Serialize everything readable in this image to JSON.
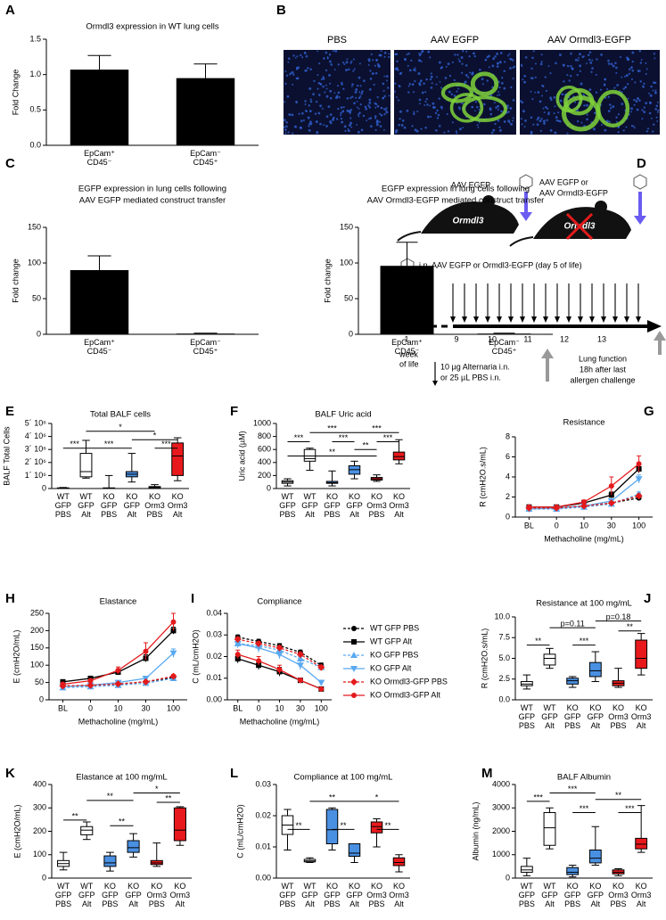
{
  "chart_data": [
    {
      "type": "bar",
      "label": "A",
      "title": "Ormdl3 expression in WT lung cells",
      "ylabel": "Fold Change",
      "categories": [
        "EpCam⁺ CD45⁻",
        "EpCam⁻ CD45⁺"
      ],
      "values": [
        1.07,
        0.95
      ],
      "errors": [
        0.2,
        0.2
      ],
      "color": "#000000",
      "ylim": [
        0,
        1.5
      ],
      "yticks": [
        {
          "value": 0,
          "label": "0.0"
        },
        0.5,
        {
          "value": 1,
          "label": "1.0"
        },
        1.5
      ]
    },
    {
      "type": "bar",
      "label": "C",
      "title": "EGFP expression in lung cells following",
      "subtitle": "AAV EGFP mediated construct transfer",
      "ylabel": "Fold change",
      "categories": [
        "EpCam⁺ CD45⁻",
        "EpCam⁻ CD45⁺"
      ],
      "values": [
        90,
        1
      ],
      "errors": [
        20,
        0.5
      ],
      "color": "#000000",
      "ylim": [
        0,
        150
      ],
      "yticks": [
        0,
        50,
        100,
        150
      ]
    },
    {
      "type": "bar",
      "title": "EGFP expression in lung cells following",
      "subtitle": "AAV Ormdl3-EGFP mediated construct transfer",
      "ylabel": "Fold change",
      "categories": [
        "EpCam⁺ CD45⁻",
        "EpCam⁻ CD45⁺"
      ],
      "values": [
        96,
        1
      ],
      "errors": [
        33,
        0.5
      ],
      "color": "#000000",
      "ylim": [
        0,
        150
      ],
      "yticks": [
        0,
        50,
        100,
        150
      ]
    },
    {
      "type": "box",
      "label": "E",
      "title": "Total BALF cells",
      "ylabel": "BALF Total Cells",
      "categories": [
        "WT GFP PBS",
        "WT GFP Alt",
        "KO GFP PBS",
        "KO GFP Alt",
        "KO Orm3 PBS",
        "KO Orm3 Alt"
      ],
      "colors": [
        "#ffffff",
        "#ffffff",
        "#4a90e2",
        "#4a90e2",
        "#e8191c",
        "#e8191c"
      ],
      "min": [
        0,
        800000,
        0,
        500000,
        0,
        600000
      ],
      "q1": [
        0,
        900000,
        0,
        900000,
        50000,
        1000000
      ],
      "median": [
        20000,
        1300000,
        20000,
        1100000,
        100000,
        2500000
      ],
      "q3": [
        50000,
        2700000,
        50000,
        1300000,
        150000,
        3500000
      ],
      "max": [
        80000,
        3700000,
        1000000,
        2700000,
        300000,
        3900000
      ],
      "annotations": [
        "***",
        "***",
        "*",
        "***",
        "*"
      ],
      "ylim": [
        0,
        5000000
      ],
      "yticks": [
        0,
        {
          "value": 1000000,
          "label": "1´ 10⁶"
        },
        {
          "value": 2000000,
          "label": "2´ 10⁶"
        },
        {
          "value": 3000000,
          "label": "3´ 10⁶"
        },
        {
          "value": 4000000,
          "label": "4´ 10⁶"
        },
        {
          "value": 5000000,
          "label": "5´ 10⁶"
        }
      ]
    },
    {
      "type": "box",
      "label": "F",
      "title": "BALF Uric acid",
      "ylabel": "Uric acid (µM)",
      "categories": [
        "WT GFP PBS",
        "WT GFP Alt",
        "KO GFP PBS",
        "KO GFP Alt",
        "KO Orm3 PBS",
        "KO Orm3 Alt"
      ],
      "colors": [
        "#ffffff",
        "#ffffff",
        "#4a90e2",
        "#4a90e2",
        "#e8191c",
        "#e8191c"
      ],
      "min": [
        40,
        280,
        40,
        150,
        110,
        380
      ],
      "q1": [
        80,
        420,
        80,
        220,
        130,
        440
      ],
      "median": [
        100,
        460,
        90,
        290,
        150,
        490
      ],
      "q3": [
        120,
        600,
        110,
        350,
        170,
        560
      ],
      "max": [
        150,
        620,
        270,
        420,
        210,
        750
      ],
      "annotations": [
        "***",
        "***",
        "***",
        "**",
        "**",
        "***",
        "***"
      ],
      "ylim": [
        0,
        1000
      ],
      "yticks": [
        0,
        200,
        400,
        600,
        800,
        1000
      ]
    },
    {
      "type": "line",
      "label": "G",
      "title": "Resistance",
      "ylabel": "R (cmH2O.s/mL)",
      "xlabel": "Methacholine (mg/mL)",
      "categories": [
        "BL",
        "0",
        "10",
        "30",
        "100"
      ],
      "ylim": [
        0,
        8
      ],
      "yticks": [
        0,
        2,
        4,
        6,
        8
      ],
      "series": [
        {
          "color": "#000000",
          "marker": "circle",
          "dash": true,
          "values": [
            1.0,
            0.9,
            1.1,
            1.4,
            1.9
          ],
          "errors": [
            0.05,
            0.05,
            0.05,
            0.1,
            0.15
          ]
        },
        {
          "color": "#000000",
          "marker": "square",
          "dash": false,
          "values": [
            1.0,
            1.0,
            1.4,
            2.2,
            4.8
          ],
          "errors": [
            0.1,
            0.1,
            0.15,
            0.3,
            0.4
          ]
        },
        {
          "color": "#5aa9f0",
          "marker": "triangle",
          "dash": true,
          "values": [
            0.8,
            0.8,
            1.0,
            1.3,
            2.3
          ],
          "errors": [
            0.05,
            0.05,
            0.1,
            0.1,
            0.2
          ]
        },
        {
          "color": "#5aa9f0",
          "marker": "triangle-down",
          "dash": false,
          "values": [
            0.8,
            0.9,
            1.1,
            1.6,
            3.8
          ],
          "errors": [
            0.05,
            0.05,
            0.1,
            0.2,
            0.4
          ]
        },
        {
          "color": "#e31a1c",
          "marker": "diamond",
          "dash": true,
          "values": [
            0.9,
            0.9,
            1.1,
            1.4,
            2.1
          ],
          "errors": [
            0.05,
            0.05,
            0.1,
            0.1,
            0.2
          ]
        },
        {
          "color": "#e31a1c",
          "marker": "circle",
          "dash": false,
          "values": [
            1.0,
            1.0,
            1.5,
            3.1,
            5.3
          ],
          "errors": [
            0.1,
            0.1,
            0.2,
            0.9,
            0.8
          ]
        }
      ]
    },
    {
      "type": "line",
      "label": "H",
      "title": "Elastance",
      "ylabel": "E (cmH2O/mL)",
      "xlabel": "Methacholine (mg/mL)",
      "categories": [
        "BL",
        "0",
        "10",
        "30",
        "100"
      ],
      "ylim": [
        0,
        250
      ],
      "yticks": [
        0,
        50,
        100,
        150,
        200,
        250
      ],
      "series": [
        {
          "color": "#000000",
          "marker": "circle",
          "dash": true,
          "values": [
            40,
            42,
            45,
            52,
            65
          ],
          "errors": [
            2,
            2,
            3,
            3,
            5
          ]
        },
        {
          "color": "#000000",
          "marker": "square",
          "dash": false,
          "values": [
            52,
            62,
            80,
            120,
            200
          ],
          "errors": [
            4,
            5,
            8,
            10,
            10
          ]
        },
        {
          "color": "#5aa9f0",
          "marker": "triangle",
          "dash": true,
          "values": [
            35,
            38,
            42,
            48,
            62
          ],
          "errors": [
            2,
            2,
            2,
            3,
            5
          ]
        },
        {
          "color": "#5aa9f0",
          "marker": "triangle-down",
          "dash": false,
          "values": [
            38,
            42,
            50,
            62,
            135
          ],
          "errors": [
            2,
            3,
            4,
            5,
            12
          ]
        },
        {
          "color": "#e31a1c",
          "marker": "diamond",
          "dash": true,
          "values": [
            40,
            42,
            46,
            52,
            68
          ],
          "errors": [
            2,
            2,
            3,
            3,
            5
          ]
        },
        {
          "color": "#e31a1c",
          "marker": "circle",
          "dash": false,
          "values": [
            45,
            55,
            85,
            140,
            225
          ],
          "errors": [
            3,
            5,
            10,
            25,
            25
          ]
        }
      ]
    },
    {
      "type": "line",
      "label": "I",
      "title": "Compliance",
      "ylabel": "C (mL/cmH2O)",
      "xlabel": "Methacholine (mg/mL)",
      "legend": "right",
      "categories": [
        "BL",
        "0",
        "10",
        "30",
        "100"
      ],
      "ylim": [
        0,
        0.04
      ],
      "yticks": [
        {
          "value": 0,
          "label": "0.00"
        },
        0.01,
        0.02,
        0.03,
        0.04
      ],
      "series": [
        {
          "name": "WT GFP PBS",
          "color": "#000000",
          "marker": "circle",
          "dash": true,
          "values": [
            0.029,
            0.027,
            0.025,
            0.022,
            0.016
          ],
          "errors": [
            0.001,
            0.001,
            0.001,
            0.001,
            0.001
          ]
        },
        {
          "name": "WT GFP Alt",
          "color": "#000000",
          "marker": "square",
          "dash": false,
          "values": [
            0.019,
            0.016,
            0.013,
            0.009,
            0.005
          ],
          "errors": [
            0.002,
            0.002,
            0.002,
            0.001,
            0.0005
          ]
        },
        {
          "name": "KO GFP PBS",
          "color": "#5aa9f0",
          "marker": "triangle",
          "dash": true,
          "values": [
            0.026,
            0.025,
            0.023,
            0.019,
            0.015
          ],
          "errors": [
            0.001,
            0.001,
            0.001,
            0.001,
            0.001
          ]
        },
        {
          "name": "KO GFP Alt",
          "color": "#5aa9f0",
          "marker": "triangle-down",
          "dash": false,
          "values": [
            0.026,
            0.024,
            0.021,
            0.016,
            0.008
          ],
          "errors": [
            0.002,
            0.002,
            0.002,
            0.002,
            0.001
          ]
        },
        {
          "name": "KO Ormdl3-GFP PBS",
          "color": "#e31a1c",
          "marker": "diamond",
          "dash": true,
          "values": [
            0.028,
            0.026,
            0.024,
            0.021,
            0.015
          ],
          "errors": [
            0.001,
            0.001,
            0.001,
            0.001,
            0.001
          ]
        },
        {
          "name": "KO Ormdl3-GFP Alt",
          "color": "#e31a1c",
          "marker": "circle",
          "dash": false,
          "values": [
            0.021,
            0.018,
            0.014,
            0.009,
            0.005
          ],
          "errors": [
            0.002,
            0.002,
            0.002,
            0.001,
            0.0005
          ]
        }
      ]
    },
    {
      "type": "box",
      "label": "J",
      "title": "Resistance at 100 mg/mL",
      "ylabel": "R (cmH2O.s/mL)",
      "categories": [
        "WT GFP PBS",
        "WT GFP Alt",
        "KO GFP PBS",
        "KO GFP Alt",
        "KO Orm3 PBS",
        "KO Orm3 Alt"
      ],
      "colors": [
        "#ffffff",
        "#ffffff",
        "#4a90e2",
        "#4a90e2",
        "#e8191c",
        "#e8191c"
      ],
      "min": [
        1.3,
        3.8,
        1.5,
        2.2,
        1.5,
        3.0
      ],
      "q1": [
        1.7,
        4.2,
        1.9,
        2.8,
        1.7,
        3.8
      ],
      "median": [
        1.9,
        5.0,
        2.3,
        3.5,
        2.0,
        5.0
      ],
      "q3": [
        2.2,
        5.5,
        2.6,
        4.5,
        2.3,
        7.2
      ],
      "max": [
        3.0,
        6.2,
        2.8,
        5.8,
        3.8,
        8.0
      ],
      "annotations": [
        "**",
        "***",
        "**",
        "p=0.11",
        "p=0.18"
      ],
      "ylim": [
        0,
        10
      ],
      "yticks": [
        {
          "value": 0,
          "label": "0.0"
        },
        2.5,
        {
          "value": 5,
          "label": "5.0"
        },
        7.5,
        {
          "value": 10,
          "label": "10.0"
        }
      ]
    },
    {
      "type": "box",
      "label": "K",
      "title": "Elastance at 100 mg/mL",
      "ylabel": "E (cmH2O/mL)",
      "categories": [
        "WT GFP PBS",
        "WT GFP Alt",
        "KO GFP PBS",
        "KO GFP Alt",
        "KO Orm3 PBS",
        "KO Orm3 Alt"
      ],
      "colors": [
        "#ffffff",
        "#ffffff",
        "#4a90e2",
        "#4a90e2",
        "#e8191c",
        "#e8191c"
      ],
      "min": [
        35,
        165,
        30,
        90,
        50,
        140
      ],
      "q1": [
        50,
        185,
        50,
        110,
        58,
        160
      ],
      "median": [
        62,
        205,
        65,
        130,
        65,
        205
      ],
      "q3": [
        75,
        220,
        95,
        160,
        75,
        300
      ],
      "max": [
        110,
        240,
        110,
        190,
        150,
        305
      ],
      "annotations": [
        "**",
        "**",
        "**",
        "*",
        "**"
      ],
      "ylim": [
        0,
        400
      ],
      "yticks": [
        0,
        100,
        200,
        300,
        400
      ]
    },
    {
      "type": "box",
      "label": "L",
      "title": "Compliance at 100 mg/mL",
      "ylabel": "C (mL/cmH2O)",
      "categories": [
        "WT GFP PBS",
        "WT GFP Alt",
        "KO GFP PBS",
        "KO GFP Alt",
        "KO Orm3 PBS",
        "KO Orm3 Alt"
      ],
      "colors": [
        "#ffffff",
        "#ffffff",
        "#4a90e2",
        "#4a90e2",
        "#e8191c",
        "#e8191c"
      ],
      "min": [
        0.009,
        0.005,
        0.009,
        0.005,
        0.01,
        0.002
      ],
      "q1": [
        0.014,
        0.0052,
        0.011,
        0.007,
        0.0145,
        0.004
      ],
      "median": [
        0.017,
        0.0055,
        0.0155,
        0.008,
        0.0165,
        0.005
      ],
      "q3": [
        0.02,
        0.006,
        0.022,
        0.011,
        0.018,
        0.0065
      ],
      "max": [
        0.022,
        0.0065,
        0.0225,
        0.011,
        0.019,
        0.0075
      ],
      "annotations": [
        "**",
        "**",
        "**",
        "*",
        "**"
      ],
      "ylim": [
        0,
        0.03
      ],
      "yticks": [
        {
          "value": 0,
          "label": "0.00"
        },
        0.01,
        0.02,
        0.03
      ]
    },
    {
      "type": "box",
      "label": "M",
      "title": "BALF Albumin",
      "ylabel": "Albumin (ng/mL)",
      "categories": [
        "WT GFP PBS",
        "WT GFP Alt",
        "KO GFP PBS",
        "KO GFP Alt",
        "KO Orm3 PBS",
        "KO Orm3 Alt"
      ],
      "colors": [
        "#ffffff",
        "#ffffff",
        "#4a90e2",
        "#4a90e2",
        "#e8191c",
        "#e8191c"
      ],
      "min": [
        100,
        1250,
        50,
        550,
        100,
        1100
      ],
      "q1": [
        250,
        1400,
        150,
        650,
        180,
        1250
      ],
      "median": [
        350,
        2150,
        250,
        850,
        250,
        1450
      ],
      "q3": [
        500,
        2800,
        450,
        1200,
        350,
        1700
      ],
      "max": [
        850,
        3000,
        550,
        2200,
        400,
        3100
      ],
      "annotations": [
        "***",
        "***",
        "***",
        "**",
        "***"
      ],
      "ylim": [
        0,
        4000
      ],
      "yticks": [
        0,
        1000,
        2000,
        3000,
        4000
      ]
    }
  ],
  "images": {
    "label": "B",
    "captions": [
      "PBS",
      "AAV EGFP",
      "AAV Ormdl3-EGFP"
    ]
  },
  "diagram": {
    "label": "D",
    "mouse_labels": [
      "AAV EGFP",
      "AAV EGFP or",
      "AAV Ormdl3-EGFP"
    ],
    "mouse_names": [
      "Ormdl3",
      "Ormdl3"
    ],
    "injection": "i.n. AAV EGFP or Ormdl3-EGFP (day 5 of life)",
    "axis_label": [
      "week",
      "of life"
    ],
    "weeks": [
      1,
      9,
      10,
      11,
      12,
      13
    ],
    "challenge": [
      "10 µg Alternaria i.n.",
      "or 25 µL PBS i.n."
    ],
    "readout": [
      "Lung function",
      "18h after last",
      "allergen challenge"
    ]
  }
}
